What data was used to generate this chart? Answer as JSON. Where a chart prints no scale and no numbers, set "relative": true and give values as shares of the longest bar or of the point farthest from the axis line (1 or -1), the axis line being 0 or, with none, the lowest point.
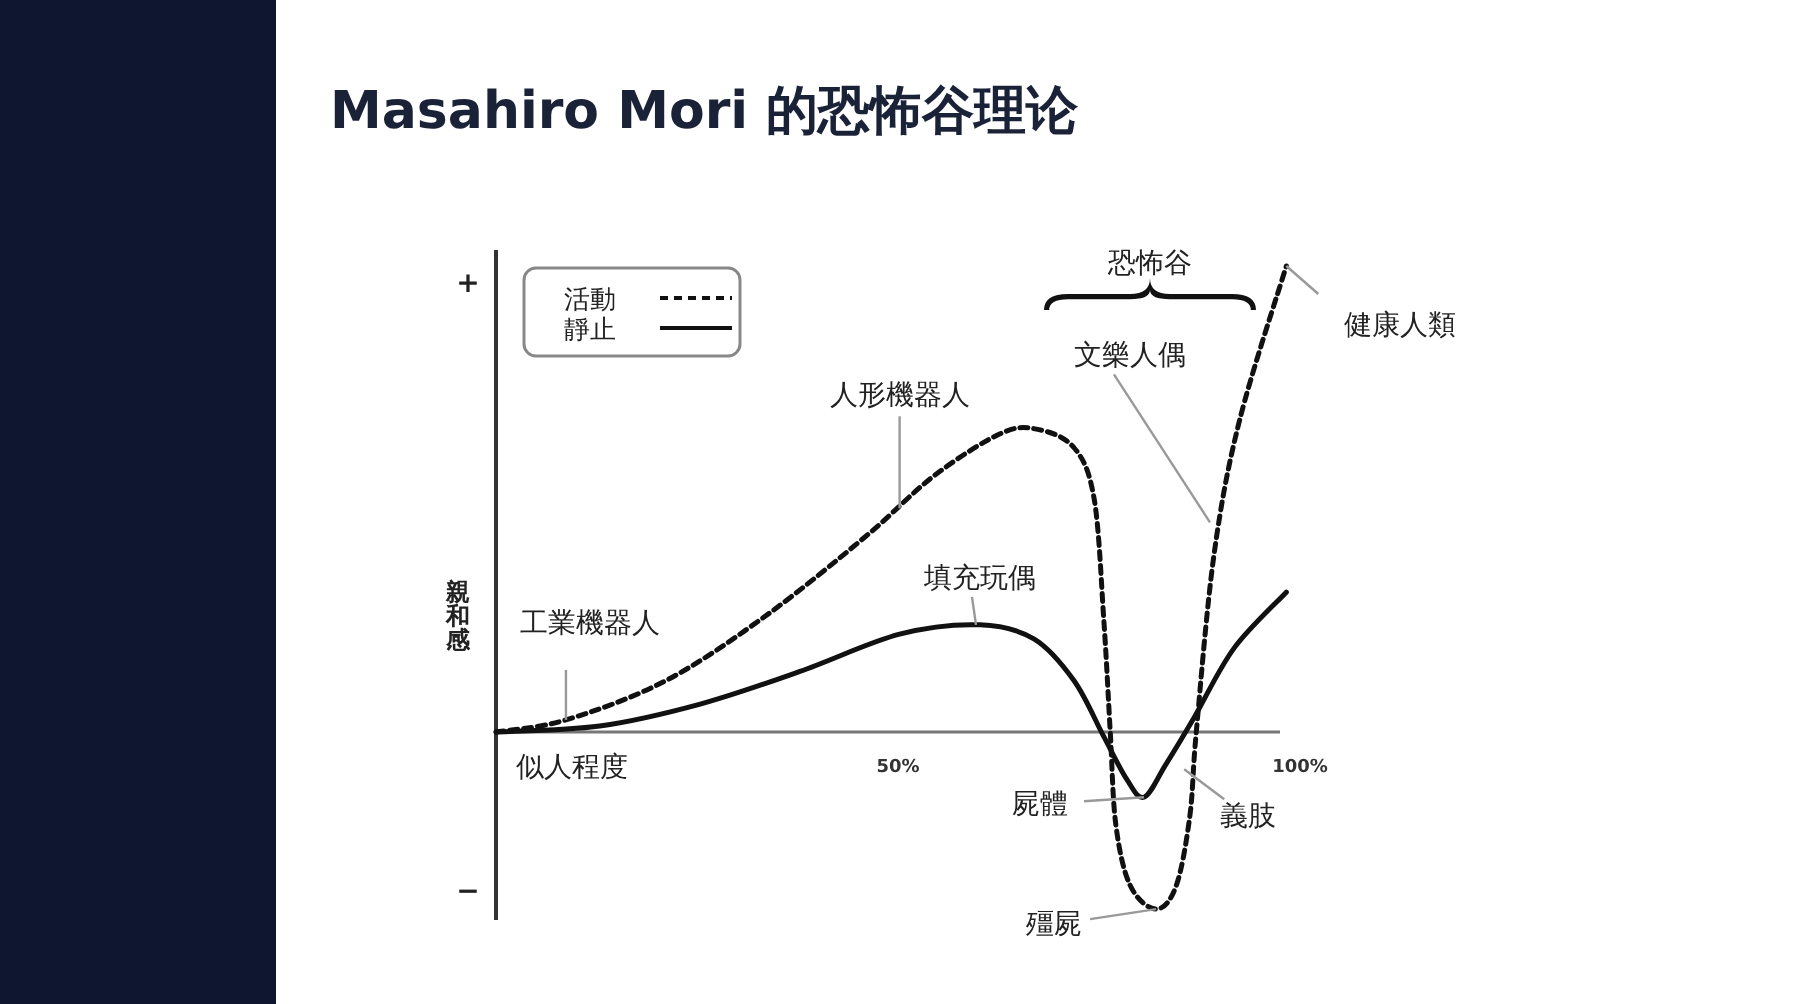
{
  "chart_data": {
    "type": "line",
    "title": "Masahiro Mori 的恐怖谷理论",
    "xlabel": "似人程度",
    "ylabel": "親和感",
    "relative": true,
    "xlim": [
      0,
      100
    ],
    "xticks": [
      {
        "value": 50,
        "label": "50%"
      },
      {
        "value": 100,
        "label": "100%"
      }
    ],
    "legend": "top left",
    "marker": "none",
    "series": [
      {
        "name": "活動",
        "color": "#111111",
        "line_style": "dashed",
        "x": [
          0,
          8.7,
          21.1,
          33.6,
          46,
          54.5,
          62.7,
          67.2,
          71.9,
          74.4,
          75.6,
          76.4,
          77.1,
          78.9,
          82.1,
          84.6,
          86.3,
          87.1,
          89.3,
          92.5,
          98.3
        ],
        "values": [
          0,
          0.026,
          0.11,
          0.25,
          0.42,
          0.55,
          0.64,
          0.65,
          0.61,
          0.5,
          0.24,
          0,
          -0.2,
          -0.33,
          -0.38,
          -0.33,
          -0.18,
          0,
          0.38,
          0.67,
          1
        ]
      },
      {
        "name": "靜止",
        "color": "#111111",
        "line_style": "solid",
        "x": [
          0,
          12.9,
          25.4,
          37.8,
          50.2,
          60.2,
          66.9,
          71.9,
          75.6,
          78.4,
          80.6,
          83.3,
          86.8,
          91.8,
          98.3
        ],
        "values": [
          0,
          0.013,
          0.06,
          0.13,
          0.21,
          0.23,
          0.2,
          0.11,
          -0.01,
          -0.1,
          -0.14,
          -0.07,
          0.03,
          0.18,
          0.3
        ]
      }
    ],
    "annotations": [
      "+",
      "−",
      "恐怖谷",
      {
        "text": "工業機器人",
        "x": 8.7,
        "y": 0.026
      },
      {
        "text": "人形機器人",
        "x": 50.2,
        "y": 0.48
      },
      {
        "text": "填充玩偶",
        "x": 59.7,
        "y": 0.23
      },
      {
        "text": "文樂人偶",
        "x": 88.8,
        "y": 0.45
      },
      {
        "text": "健康人類",
        "x": 98.3,
        "y": 1
      },
      {
        "text": "屍體",
        "x": 80.6,
        "y": -0.14
      },
      {
        "text": "殭屍",
        "x": 82.1,
        "y": -0.38
      },
      {
        "text": "義肢",
        "x": 85.6,
        "y": -0.08
      }
    ]
  }
}
